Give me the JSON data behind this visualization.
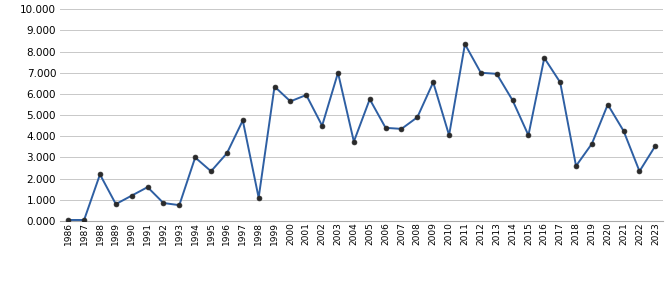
{
  "years": [
    1986,
    1987,
    1988,
    1989,
    1990,
    1991,
    1992,
    1993,
    1994,
    1995,
    1996,
    1997,
    1998,
    1999,
    2000,
    2001,
    2002,
    2003,
    2004,
    2005,
    2006,
    2007,
    2008,
    2009,
    2010,
    2011,
    2012,
    2013,
    2014,
    2015,
    2016,
    2017,
    2018,
    2019,
    2020,
    2021,
    2022,
    2023
  ],
  "values": [
    50,
    50,
    2200,
    800,
    1200,
    1600,
    850,
    750,
    3000,
    2350,
    3200,
    4750,
    1100,
    6350,
    5650,
    5950,
    4500,
    7000,
    3750,
    5750,
    4400,
    4350,
    4900,
    6550,
    4050,
    8350,
    7000,
    6950,
    5700,
    4050,
    7700,
    6550,
    2600,
    3650,
    5500,
    4250,
    2350,
    3550
  ],
  "line_color": "#2E5FA3",
  "marker_color": "#2a2a2a",
  "ylim": [
    0,
    10000
  ],
  "yticks": [
    0,
    1000,
    2000,
    3000,
    4000,
    5000,
    6000,
    7000,
    8000,
    9000,
    10000
  ],
  "ytick_labels": [
    "0.000",
    "1.000",
    "2.000",
    "3.000",
    "4.000",
    "5.000",
    "6.000",
    "7.000",
    "8.000",
    "9.000",
    "10.000"
  ],
  "grid_color": "#c8c8c8",
  "background_color": "#ffffff",
  "line_width": 1.4,
  "marker_size": 3.5,
  "xtick_fontsize": 6.5,
  "ytick_fontsize": 7.5
}
